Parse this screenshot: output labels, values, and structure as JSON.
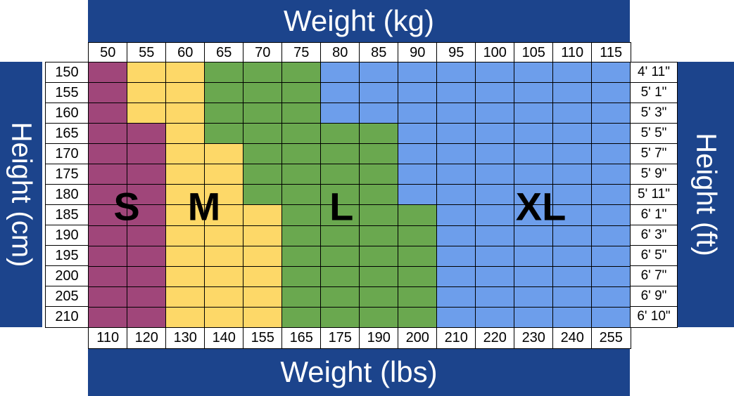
{
  "chart_data": {
    "type": "heatmap",
    "title": "",
    "xlabel": "Weight (kg)",
    "xlabel_secondary": "Weight (lbs)",
    "ylabel": "Height (cm)",
    "ylabel_secondary": "Height (ft)",
    "x_kg": [
      "50",
      "55",
      "60",
      "65",
      "70",
      "75",
      "80",
      "85",
      "90",
      "95",
      "100",
      "105",
      "110",
      "115"
    ],
    "x_lbs": [
      "110",
      "120",
      "130",
      "140",
      "155",
      "165",
      "175",
      "190",
      "200",
      "210",
      "220",
      "230",
      "240",
      "255"
    ],
    "y_cm": [
      "150",
      "155",
      "160",
      "165",
      "170",
      "175",
      "180",
      "185",
      "190",
      "195",
      "200",
      "205",
      "210"
    ],
    "y_ft": [
      "4' 11\"",
      "5' 1\"",
      "5' 3\"",
      "5' 5\"",
      "5' 7\"",
      "5' 9\"",
      "5' 11\"",
      "6' 1\"",
      "6' 3\"",
      "6' 5\"",
      "6' 7\"",
      "6' 9\"",
      "6' 10\""
    ],
    "sizes": [
      "S",
      "M",
      "L",
      "XL"
    ],
    "size_colors": {
      "S": "#a0467a",
      "M": "#fdd868",
      "L": "#6aa84f",
      "XL": "#6d9eeb"
    },
    "matrix": [
      [
        "S",
        "M",
        "M",
        "L",
        "L",
        "L",
        "XL",
        "XL",
        "XL",
        "XL",
        "XL",
        "XL",
        "XL",
        "XL"
      ],
      [
        "S",
        "M",
        "M",
        "L",
        "L",
        "L",
        "XL",
        "XL",
        "XL",
        "XL",
        "XL",
        "XL",
        "XL",
        "XL"
      ],
      [
        "S",
        "M",
        "M",
        "L",
        "L",
        "L",
        "XL",
        "XL",
        "XL",
        "XL",
        "XL",
        "XL",
        "XL",
        "XL"
      ],
      [
        "S",
        "S",
        "M",
        "L",
        "L",
        "L",
        "L",
        "L",
        "XL",
        "XL",
        "XL",
        "XL",
        "XL",
        "XL"
      ],
      [
        "S",
        "S",
        "M",
        "M",
        "L",
        "L",
        "L",
        "L",
        "XL",
        "XL",
        "XL",
        "XL",
        "XL",
        "XL"
      ],
      [
        "S",
        "S",
        "M",
        "M",
        "L",
        "L",
        "L",
        "L",
        "XL",
        "XL",
        "XL",
        "XL",
        "XL",
        "XL"
      ],
      [
        "S",
        "S",
        "M",
        "M",
        "L",
        "L",
        "L",
        "L",
        "XL",
        "XL",
        "XL",
        "XL",
        "XL",
        "XL"
      ],
      [
        "S",
        "S",
        "M",
        "M",
        "M",
        "L",
        "L",
        "L",
        "L",
        "XL",
        "XL",
        "XL",
        "XL",
        "XL"
      ],
      [
        "S",
        "S",
        "M",
        "M",
        "M",
        "L",
        "L",
        "L",
        "L",
        "XL",
        "XL",
        "XL",
        "XL",
        "XL"
      ],
      [
        "S",
        "S",
        "M",
        "M",
        "M",
        "L",
        "L",
        "L",
        "L",
        "XL",
        "XL",
        "XL",
        "XL",
        "XL"
      ],
      [
        "S",
        "S",
        "M",
        "M",
        "M",
        "L",
        "L",
        "L",
        "L",
        "XL",
        "XL",
        "XL",
        "XL",
        "XL"
      ],
      [
        "S",
        "S",
        "M",
        "M",
        "M",
        "L",
        "L",
        "L",
        "L",
        "XL",
        "XL",
        "XL",
        "XL",
        "XL"
      ],
      [
        "S",
        "S",
        "M",
        "M",
        "M",
        "L",
        "L",
        "L",
        "L",
        "XL",
        "XL",
        "XL",
        "XL",
        "XL"
      ]
    ]
  }
}
